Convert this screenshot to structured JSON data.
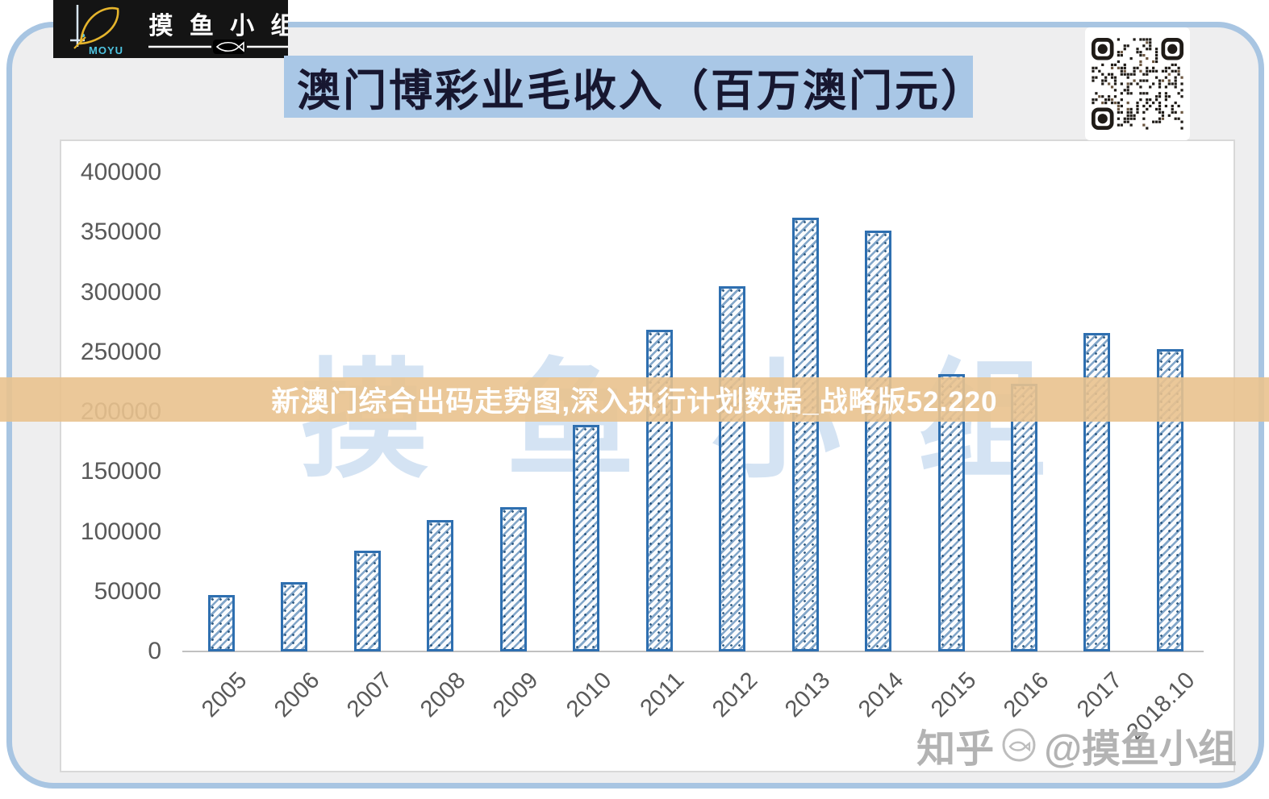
{
  "logo": {
    "brand_cn": "摸 鱼 小 组",
    "brand_en": "MOYU"
  },
  "title": "澳门博彩业毛收入（百万澳门元）",
  "banner": {
    "text": "新澳门综合出码走势图,深入执行计划数据_战略版52.220"
  },
  "watermark_center": "摸鱼小组",
  "watermark_bottom": {
    "prefix": "知乎",
    "suffix": "@摸鱼小组"
  },
  "icons": {
    "qr": "qr-code",
    "logo_fish": "fish-icon",
    "separator_fish": "fish-icon",
    "watermark_fish": "fish-badge-icon"
  },
  "colors": {
    "frame_blue": "#a8c5e2",
    "title_bg": "#a9c7e6",
    "bar_border": "#2e6fb0",
    "banner_bg": "#e9c28e",
    "axis_text": "#595959"
  },
  "chart_data": {
    "type": "bar",
    "title": "澳门博彩业毛收入（百万澳门元）",
    "categories": [
      "2005",
      "2006",
      "2007",
      "2008",
      "2009",
      "2010",
      "2011",
      "2012",
      "2013",
      "2014",
      "2015",
      "2016",
      "2017",
      "2018.10"
    ],
    "values": [
      47000,
      58000,
      84000,
      110000,
      120500,
      189500,
      269000,
      305000,
      362000,
      351500,
      231500,
      223500,
      266000,
      252500
    ],
    "xlabel": "",
    "ylabel": "",
    "ylim": [
      0,
      400000
    ],
    "ytick_interval": 50000,
    "yticks": [
      0,
      50000,
      100000,
      150000,
      200000,
      250000,
      300000,
      350000,
      400000
    ],
    "grid": false,
    "legend": null,
    "bar_fill": "white with blue diagonal hatch pattern"
  }
}
